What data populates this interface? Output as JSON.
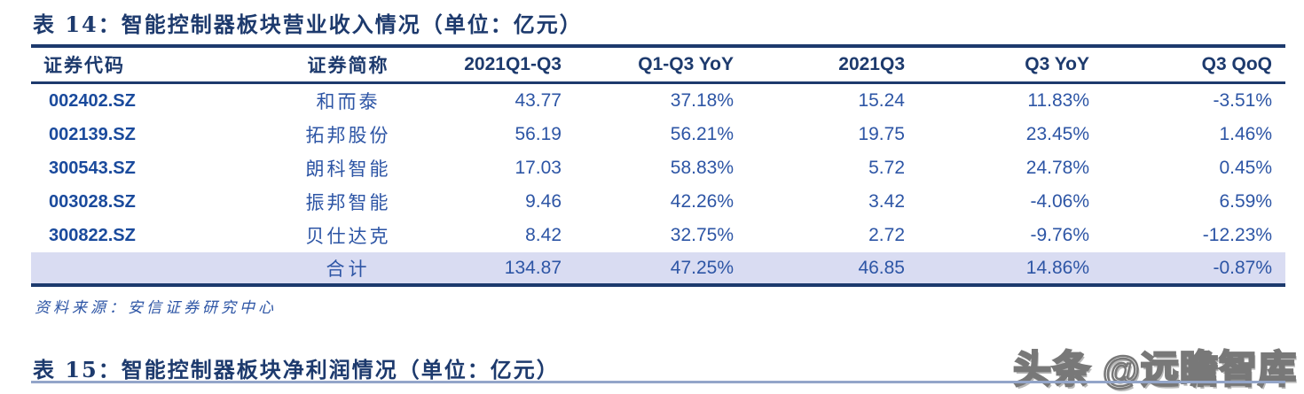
{
  "table14": {
    "title": "表 14：智能控制器板块营业收入情况（单位：亿元）",
    "columns": [
      "证券代码",
      "证券简称",
      "2021Q1-Q3",
      "Q1-Q3 YoY",
      "2021Q3",
      "Q3 YoY",
      "Q3 QoQ"
    ],
    "rows": [
      [
        "002402.SZ",
        "和而泰",
        "43.77",
        "37.18%",
        "15.24",
        "11.83%",
        "-3.51%"
      ],
      [
        "002139.SZ",
        "拓邦股份",
        "56.19",
        "56.21%",
        "19.75",
        "23.45%",
        "1.46%"
      ],
      [
        "300543.SZ",
        "朗科智能",
        "17.03",
        "58.83%",
        "5.72",
        "24.78%",
        "0.45%"
      ],
      [
        "003028.SZ",
        "振邦智能",
        "9.46",
        "42.26%",
        "3.42",
        "-4.06%",
        "6.59%"
      ],
      [
        "300822.SZ",
        "贝仕达克",
        "8.42",
        "32.75%",
        "2.72",
        "-9.76%",
        "-12.23%"
      ]
    ],
    "total": [
      "",
      "合计",
      "134.87",
      "47.25%",
      "46.85",
      "14.86%",
      "-0.87%"
    ],
    "source": "资料来源：安信证券研究中心"
  },
  "table15": {
    "title": "表 15：智能控制器板块净利润情况（单位：亿元）"
  },
  "watermark": {
    "text": "头条 @远瞻智库"
  },
  "colors": {
    "navy": "#1d3a6d",
    "value_blue": "#2d55a5",
    "code_blue": "#1a4a9c",
    "total_row_bg": "#d9dcf2"
  }
}
